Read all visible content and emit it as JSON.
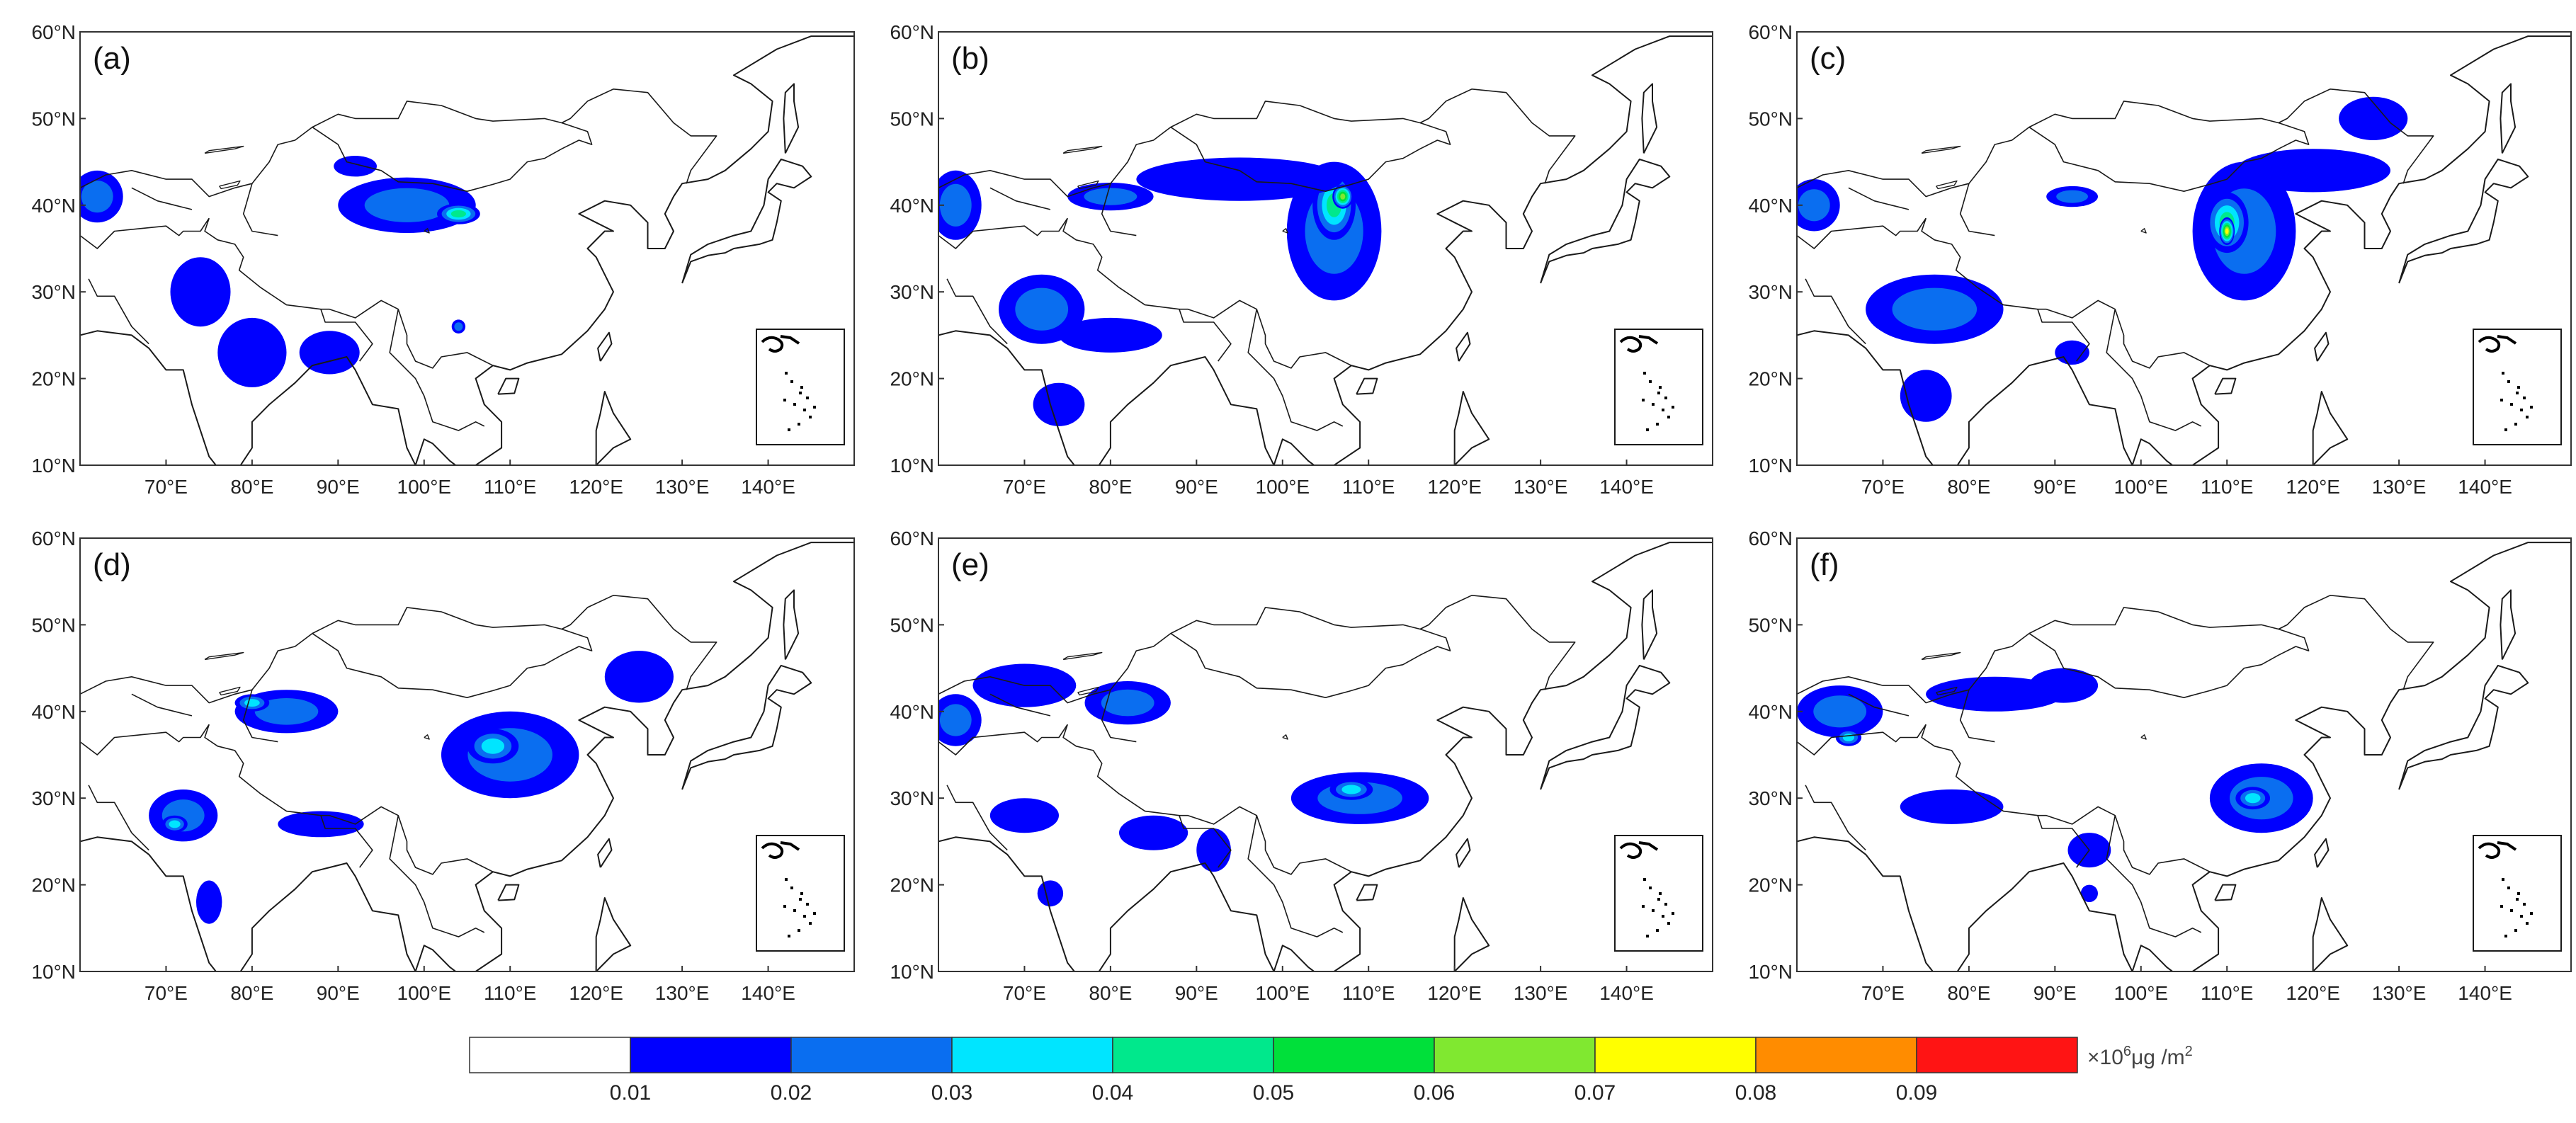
{
  "figure": {
    "lon_ticks": [
      "70°E",
      "80°E",
      "90°E",
      "100°E",
      "110°E",
      "120°E",
      "130°E",
      "140°E"
    ],
    "lat_ticks": [
      "60°N",
      "50°N",
      "40°N",
      "30°N",
      "20°N",
      "10°N"
    ],
    "lon_range": [
      60,
      150
    ],
    "lat_range": [
      10,
      60
    ]
  },
  "panels": [
    {
      "label": "(a)",
      "blobs": [
        {
          "lon": 98,
          "lat": 40,
          "rx": 8,
          "ry": 3.2,
          "level": 2
        },
        {
          "lon": 104,
          "lat": 39,
          "rx": 2.5,
          "ry": 1.2,
          "level": 4
        },
        {
          "lon": 92,
          "lat": 44.5,
          "rx": 2.5,
          "ry": 1.2,
          "level": 1
        },
        {
          "lon": 62,
          "lat": 41,
          "rx": 3,
          "ry": 3,
          "level": 2
        },
        {
          "lon": 74,
          "lat": 30,
          "rx": 3.5,
          "ry": 4,
          "level": 1
        },
        {
          "lon": 80,
          "lat": 23,
          "rx": 4,
          "ry": 4,
          "level": 1
        },
        {
          "lon": 89,
          "lat": 23,
          "rx": 3.5,
          "ry": 2.5,
          "level": 1
        },
        {
          "lon": 104,
          "lat": 26,
          "rx": 0.8,
          "ry": 0.8,
          "level": 2
        }
      ]
    },
    {
      "label": "(b)",
      "blobs": [
        {
          "lon": 106,
          "lat": 37,
          "rx": 5.5,
          "ry": 8,
          "level": 2
        },
        {
          "lon": 106,
          "lat": 40,
          "rx": 2.5,
          "ry": 4,
          "level": 4
        },
        {
          "lon": 107,
          "lat": 41,
          "rx": 1.2,
          "ry": 1.4,
          "level": 6
        },
        {
          "lon": 95,
          "lat": 43,
          "rx": 12,
          "ry": 2.5,
          "level": 1
        },
        {
          "lon": 80,
          "lat": 41,
          "rx": 5,
          "ry": 1.6,
          "level": 2
        },
        {
          "lon": 62,
          "lat": 40,
          "rx": 3,
          "ry": 4,
          "level": 2
        },
        {
          "lon": 72,
          "lat": 28,
          "rx": 5,
          "ry": 4,
          "level": 2
        },
        {
          "lon": 80,
          "lat": 25,
          "rx": 6,
          "ry": 2,
          "level": 1
        },
        {
          "lon": 74,
          "lat": 17,
          "rx": 3,
          "ry": 2.5,
          "level": 1
        }
      ]
    },
    {
      "label": "(c)",
      "blobs": [
        {
          "lon": 112,
          "lat": 37,
          "rx": 6,
          "ry": 8,
          "level": 2
        },
        {
          "lon": 110,
          "lat": 38,
          "rx": 2.5,
          "ry": 3.5,
          "level": 4
        },
        {
          "lon": 110,
          "lat": 37,
          "rx": 0.9,
          "ry": 1.6,
          "level": 7
        },
        {
          "lon": 120,
          "lat": 44,
          "rx": 9,
          "ry": 2.5,
          "level": 1
        },
        {
          "lon": 127,
          "lat": 50,
          "rx": 4,
          "ry": 2.5,
          "level": 1
        },
        {
          "lon": 92,
          "lat": 41,
          "rx": 3,
          "ry": 1.2,
          "level": 2
        },
        {
          "lon": 62,
          "lat": 40,
          "rx": 3,
          "ry": 3,
          "level": 2
        },
        {
          "lon": 76,
          "lat": 28,
          "rx": 8,
          "ry": 4,
          "level": 2
        },
        {
          "lon": 75,
          "lat": 18,
          "rx": 3,
          "ry": 3,
          "level": 1
        },
        {
          "lon": 92,
          "lat": 23,
          "rx": 2,
          "ry": 1.4,
          "level": 1
        }
      ]
    },
    {
      "label": "(d)",
      "blobs": [
        {
          "lon": 110,
          "lat": 35,
          "rx": 8,
          "ry": 5,
          "level": 2
        },
        {
          "lon": 108,
          "lat": 36,
          "rx": 3,
          "ry": 2,
          "level": 3
        },
        {
          "lon": 125,
          "lat": 44,
          "rx": 4,
          "ry": 3,
          "level": 1
        },
        {
          "lon": 84,
          "lat": 40,
          "rx": 6,
          "ry": 2.5,
          "level": 2
        },
        {
          "lon": 80,
          "lat": 41,
          "rx": 2,
          "ry": 1,
          "level": 3
        },
        {
          "lon": 72,
          "lat": 28,
          "rx": 4,
          "ry": 3,
          "level": 2
        },
        {
          "lon": 71,
          "lat": 27,
          "rx": 1.5,
          "ry": 1,
          "level": 3
        },
        {
          "lon": 88,
          "lat": 27,
          "rx": 5,
          "ry": 1.5,
          "level": 1
        },
        {
          "lon": 75,
          "lat": 18,
          "rx": 1.5,
          "ry": 2.5,
          "level": 1
        }
      ]
    },
    {
      "label": "(e)",
      "blobs": [
        {
          "lon": 109,
          "lat": 30,
          "rx": 8,
          "ry": 3,
          "level": 2
        },
        {
          "lon": 108,
          "lat": 31,
          "rx": 2.5,
          "ry": 1.2,
          "level": 3
        },
        {
          "lon": 82,
          "lat": 41,
          "rx": 5,
          "ry": 2.5,
          "level": 2
        },
        {
          "lon": 70,
          "lat": 43,
          "rx": 6,
          "ry": 2.5,
          "level": 1
        },
        {
          "lon": 62,
          "lat": 39,
          "rx": 3,
          "ry": 3,
          "level": 2
        },
        {
          "lon": 70,
          "lat": 28,
          "rx": 4,
          "ry": 2,
          "level": 1
        },
        {
          "lon": 85,
          "lat": 26,
          "rx": 4,
          "ry": 2,
          "level": 1
        },
        {
          "lon": 92,
          "lat": 24,
          "rx": 2,
          "ry": 2.5,
          "level": 1
        },
        {
          "lon": 73,
          "lat": 19,
          "rx": 1.5,
          "ry": 1.5,
          "level": 1
        }
      ]
    },
    {
      "label": "(f)",
      "blobs": [
        {
          "lon": 114,
          "lat": 30,
          "rx": 6,
          "ry": 4,
          "level": 2
        },
        {
          "lon": 113,
          "lat": 30,
          "rx": 2,
          "ry": 1.3,
          "level": 3
        },
        {
          "lon": 65,
          "lat": 40,
          "rx": 5,
          "ry": 3,
          "level": 2
        },
        {
          "lon": 66,
          "lat": 37,
          "rx": 1.5,
          "ry": 1,
          "level": 3
        },
        {
          "lon": 83,
          "lat": 42,
          "rx": 8,
          "ry": 2,
          "level": 1
        },
        {
          "lon": 91,
          "lat": 43,
          "rx": 4,
          "ry": 2,
          "level": 1
        },
        {
          "lon": 78,
          "lat": 29,
          "rx": 6,
          "ry": 2,
          "level": 1
        },
        {
          "lon": 94,
          "lat": 24,
          "rx": 2.5,
          "ry": 2,
          "level": 1
        },
        {
          "lon": 94,
          "lat": 19,
          "rx": 1,
          "ry": 1,
          "level": 1
        }
      ]
    }
  ],
  "colorbar": {
    "colors": [
      "#ffffff",
      "#0000ff",
      "#0a6ef0",
      "#00e5ff",
      "#00e88c",
      "#00e03a",
      "#80e830",
      "#ffff00",
      "#ff8c00",
      "#ff1414"
    ],
    "ticks": [
      "0.01",
      "0.02",
      "0.03",
      "0.04",
      "0.05",
      "0.06",
      "0.07",
      "0.08",
      "0.09"
    ],
    "unit_prefix": "×10",
    "unit_exp": "6",
    "unit_suffix": "μg /m",
    "unit_suffix_exp": "2"
  }
}
